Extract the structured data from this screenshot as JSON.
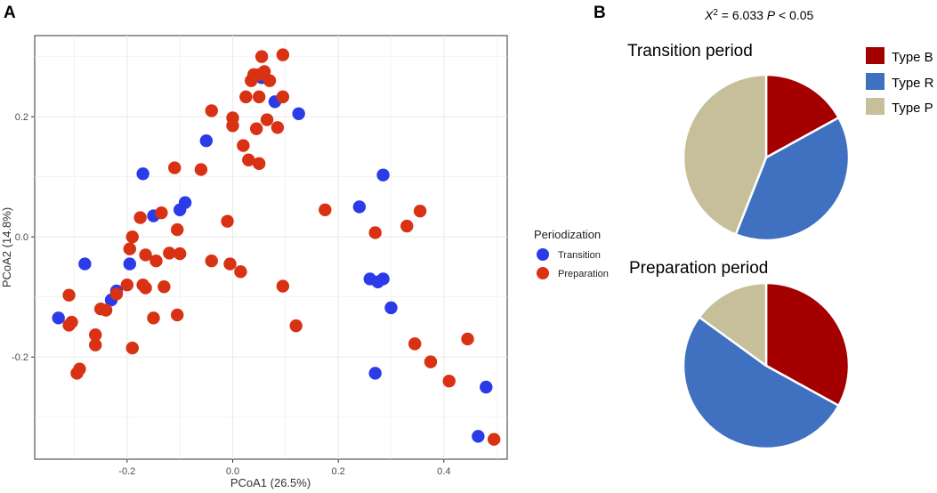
{
  "panel_labels": {
    "a": "A",
    "b": "B"
  },
  "stats": {
    "chi_symbol": "X",
    "chi_power": "2",
    "chi_value": " = 6.033 ",
    "p_symbol": "P",
    "p_value": " < 0.05"
  },
  "colors": {
    "transition": "#2b3be8",
    "preparation": "#d93113",
    "type_b": "#a50000",
    "type_r": "#4070c0",
    "type_p": "#c6bf9a",
    "grid": "#ebebeb"
  },
  "chart_data": [
    {
      "type": "scatter",
      "title": "",
      "xlabel": "PCoA1 (26.5%)",
      "ylabel": "PCoA2 (14.8%)",
      "xlim": [
        -0.375,
        0.52
      ],
      "ylim": [
        -0.37,
        0.335
      ],
      "x_ticks": [
        -0.2,
        0.0,
        0.2,
        0.4
      ],
      "x_tick_labels": [
        "-0.2",
        "0.0",
        "0.2",
        "0.4"
      ],
      "y_ticks": [
        -0.2,
        0.0,
        0.2
      ],
      "y_tick_labels": [
        "-0.2",
        "0.0",
        "0.2"
      ],
      "grid": true,
      "legend_title": "Periodization",
      "legend_position": "right",
      "series": [
        {
          "name": "Transition",
          "color": "#2b3be8",
          "points": [
            [
              -0.33,
              -0.135
            ],
            [
              -0.28,
              -0.045
            ],
            [
              -0.22,
              -0.09
            ],
            [
              -0.23,
              -0.105
            ],
            [
              -0.195,
              -0.045
            ],
            [
              -0.17,
              0.105
            ],
            [
              -0.15,
              0.035
            ],
            [
              -0.1,
              0.045
            ],
            [
              -0.09,
              0.057
            ],
            [
              -0.05,
              0.16
            ],
            [
              0.055,
              0.265
            ],
            [
              0.08,
              0.225
            ],
            [
              0.125,
              0.205
            ],
            [
              0.24,
              0.05
            ],
            [
              0.285,
              0.103
            ],
            [
              0.26,
              -0.07
            ],
            [
              0.275,
              -0.075
            ],
            [
              0.285,
              -0.07
            ],
            [
              0.3,
              -0.118
            ],
            [
              0.27,
              -0.227
            ],
            [
              0.465,
              -0.332
            ],
            [
              0.48,
              -0.25
            ]
          ]
        },
        {
          "name": "Preparation",
          "color": "#d93113",
          "points": [
            [
              -0.31,
              -0.097
            ],
            [
              -0.31,
              -0.147
            ],
            [
              -0.305,
              -0.142
            ],
            [
              -0.295,
              -0.227
            ],
            [
              -0.29,
              -0.22
            ],
            [
              -0.26,
              -0.163
            ],
            [
              -0.26,
              -0.18
            ],
            [
              -0.25,
              -0.12
            ],
            [
              -0.24,
              -0.122
            ],
            [
              -0.22,
              -0.095
            ],
            [
              -0.2,
              -0.08
            ],
            [
              -0.195,
              -0.02
            ],
            [
              -0.19,
              0.0
            ],
            [
              -0.19,
              -0.185
            ],
            [
              -0.175,
              0.032
            ],
            [
              -0.17,
              -0.08
            ],
            [
              -0.165,
              -0.085
            ],
            [
              -0.165,
              -0.03
            ],
            [
              -0.15,
              -0.135
            ],
            [
              -0.145,
              -0.04
            ],
            [
              -0.135,
              0.04
            ],
            [
              -0.13,
              -0.083
            ],
            [
              -0.12,
              -0.027
            ],
            [
              -0.11,
              0.115
            ],
            [
              -0.105,
              0.012
            ],
            [
              -0.105,
              -0.13
            ],
            [
              -0.1,
              -0.028
            ],
            [
              -0.06,
              0.112
            ],
            [
              -0.04,
              0.21
            ],
            [
              -0.04,
              -0.04
            ],
            [
              -0.01,
              0.026
            ],
            [
              -0.005,
              -0.045
            ],
            [
              0.0,
              0.185
            ],
            [
              0.0,
              0.198
            ],
            [
              0.015,
              -0.058
            ],
            [
              0.02,
              0.152
            ],
            [
              0.025,
              0.233
            ],
            [
              0.03,
              0.128
            ],
            [
              0.035,
              0.26
            ],
            [
              0.04,
              0.27
            ],
            [
              0.045,
              0.18
            ],
            [
              0.05,
              0.122
            ],
            [
              0.05,
              0.233
            ],
            [
              0.05,
              0.27
            ],
            [
              0.055,
              0.3
            ],
            [
              0.06,
              0.275
            ],
            [
              0.065,
              0.195
            ],
            [
              0.07,
              0.26
            ],
            [
              0.085,
              0.182
            ],
            [
              0.095,
              0.303
            ],
            [
              0.095,
              0.233
            ],
            [
              0.095,
              -0.082
            ],
            [
              0.12,
              -0.148
            ],
            [
              0.175,
              0.045
            ],
            [
              0.27,
              0.007
            ],
            [
              0.33,
              0.018
            ],
            [
              0.345,
              -0.178
            ],
            [
              0.355,
              0.043
            ],
            [
              0.375,
              -0.208
            ],
            [
              0.41,
              -0.24
            ],
            [
              0.445,
              -0.17
            ],
            [
              0.495,
              -0.337
            ]
          ]
        }
      ]
    },
    {
      "type": "pie",
      "title": "Transition period",
      "categories": [
        "Type B",
        "Type R",
        "Type P"
      ],
      "values": [
        0.17,
        0.39,
        0.44
      ]
    },
    {
      "type": "pie",
      "title": "Preparation period",
      "categories": [
        "Type B",
        "Type R",
        "Type P"
      ],
      "values": [
        0.33,
        0.52,
        0.15
      ]
    }
  ],
  "pie_legend": [
    {
      "label": "Type B",
      "color": "#a50000"
    },
    {
      "label": "Type R",
      "color": "#4070c0"
    },
    {
      "label": "Type P",
      "color": "#c6bf9a"
    }
  ]
}
